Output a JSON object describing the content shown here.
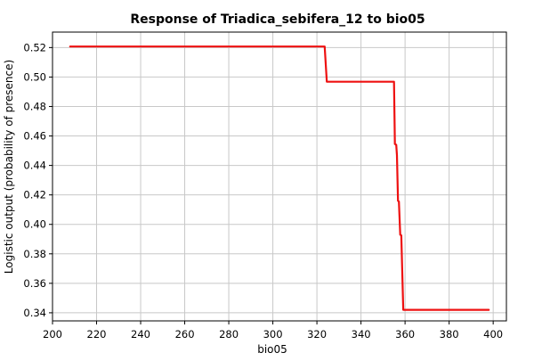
{
  "chart_data": {
    "type": "line",
    "title": "Response of Triadica_sebifera_12 to bio05",
    "xlabel": "bio05",
    "ylabel": "Logistic output (probability of presence)",
    "xlim": [
      200,
      406
    ],
    "ylim": [
      0.3345,
      0.5305
    ],
    "x_ticks": [
      200,
      220,
      240,
      260,
      280,
      300,
      320,
      340,
      360,
      380,
      400
    ],
    "y_ticks": [
      0.34,
      0.36,
      0.38,
      0.4,
      0.42,
      0.44,
      0.46,
      0.48,
      0.5,
      0.52
    ],
    "x_tick_labels": [
      "200",
      "220",
      "240",
      "260",
      "280",
      "300",
      "320",
      "340",
      "360",
      "380",
      "400"
    ],
    "y_tick_labels": [
      "0.34",
      "0.36",
      "0.38",
      "0.40",
      "0.42",
      "0.44",
      "0.46",
      "0.48",
      "0.50",
      "0.52"
    ],
    "grid": true,
    "series": [
      {
        "color": "#ee1111",
        "x": [
          208,
          323.5,
          324.5,
          355.0,
          355.4,
          356.0,
          356.3,
          356.8,
          357.2,
          357.8,
          358.3,
          359.2,
          398
        ],
        "y": [
          0.5207,
          0.5207,
          0.4968,
          0.4968,
          0.4545,
          0.454,
          0.447,
          0.416,
          0.4155,
          0.393,
          0.3925,
          0.342,
          0.342
        ]
      }
    ]
  }
}
